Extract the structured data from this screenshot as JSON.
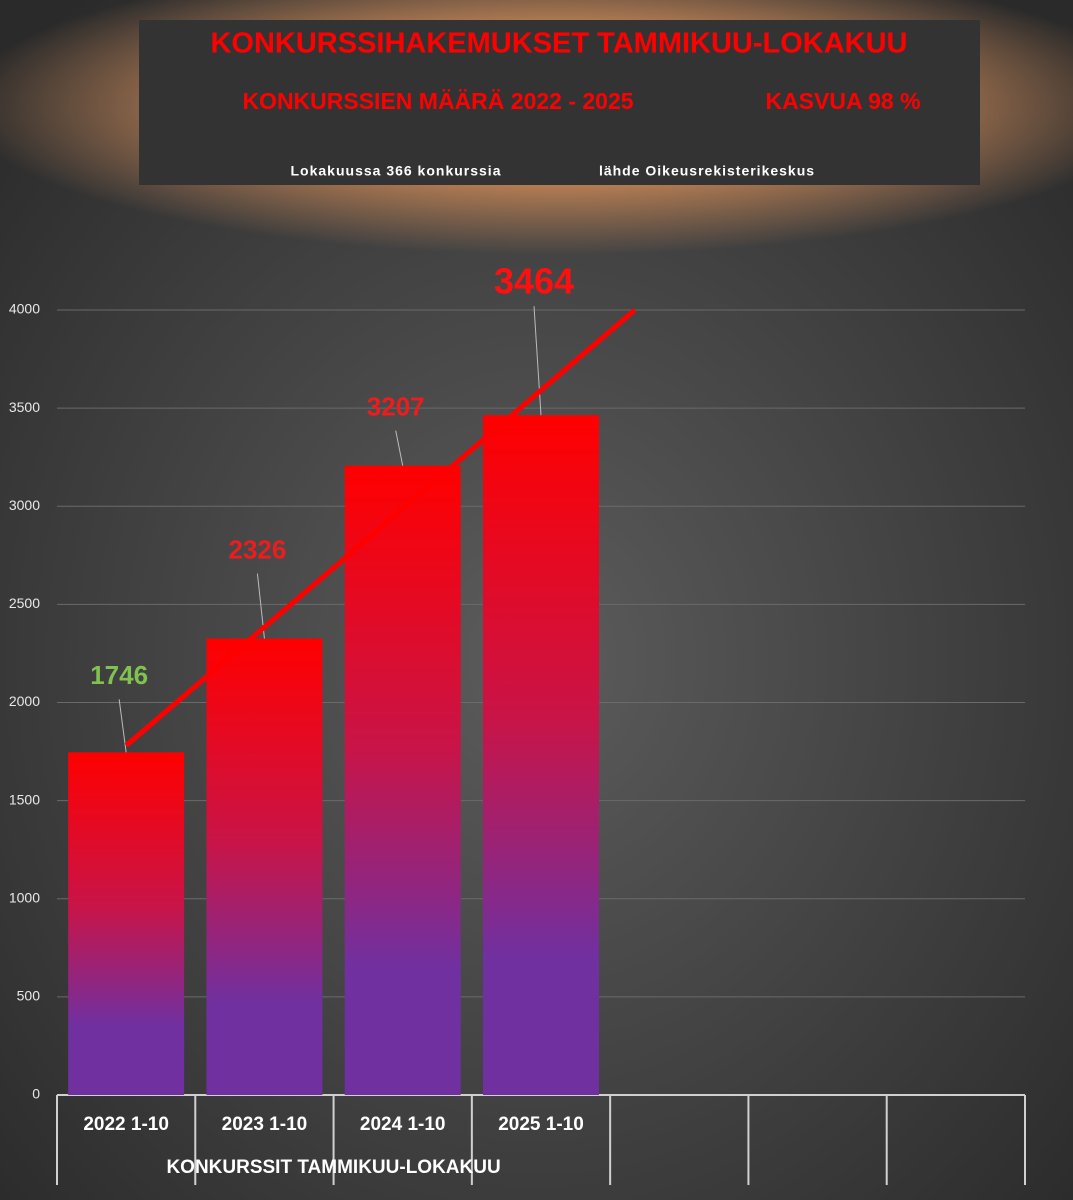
{
  "chart_data": {
    "type": "bar",
    "title": "KONKURSSIHAKEMUKSET TAMMIKUU-LOKAKUU",
    "subtitle": "KONKURSSIEN MÄÄRÄ 2022 - 2025",
    "annotations": [
      "KASVUA 98 %",
      "Lokakuussa 366 konkurssia",
      "lähde Oikeusrekisterikeskus"
    ],
    "x_label": "KONKURSSIT TAMMIKUU-LOKAKUU",
    "categories": [
      "2022 1-10",
      "2023 1-10",
      "2024 1-10",
      "2025 1-10",
      null,
      null,
      null
    ],
    "values": [
      1746,
      2326,
      3207,
      3464,
      null,
      null,
      null
    ],
    "label_colors": [
      "#7fc24f",
      "#ee1c1c",
      "#ee1c1c",
      "#ff1010",
      null,
      null,
      null
    ],
    "color_top": "#ff0000",
    "color_bottom": "#7030a0",
    "trendline": true,
    "trendline_color": "#ff0000",
    "ylim": [
      0,
      4000
    ],
    "yticks": [
      0,
      500,
      1000,
      1500,
      2000,
      2500,
      3000,
      3500,
      4000
    ],
    "grid": true
  }
}
